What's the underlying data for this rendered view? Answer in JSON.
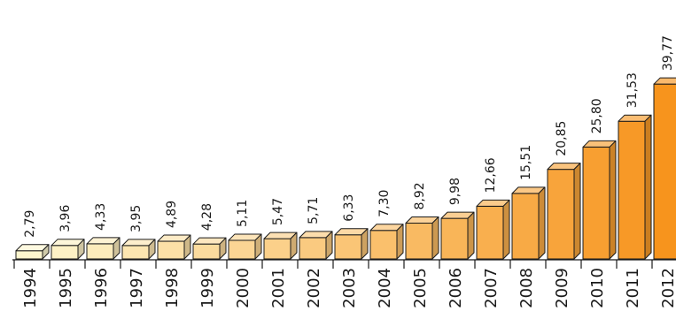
{
  "chart_data": {
    "type": "bar",
    "style": "3d-columns",
    "categories": [
      "1994",
      "1995",
      "1996",
      "1997",
      "1998",
      "1999",
      "2000",
      "2001",
      "2002",
      "2003",
      "2004",
      "2005",
      "2006",
      "2007",
      "2008",
      "2009",
      "2010",
      "2011",
      "2012"
    ],
    "values": [
      2.79,
      3.96,
      4.33,
      3.95,
      4.89,
      4.28,
      5.11,
      5.47,
      5.71,
      6.33,
      7.3,
      8.92,
      9.98,
      12.66,
      15.51,
      20.85,
      25.8,
      31.53,
      39.77
    ],
    "value_labels": [
      "2,79",
      "3,96",
      "4,33",
      "3,95",
      "4,89",
      "4,28",
      "5,11",
      "5,47",
      "5,71",
      "6,33",
      "7,30",
      "8,92",
      "9,98",
      "12,66",
      "15,51",
      "20,85",
      "25,80",
      "31,53",
      "39,77"
    ],
    "title": "",
    "xlabel": "",
    "ylabel": "",
    "grid": false,
    "legend": "none",
    "colors": {
      "start": "#fdf6cf",
      "end": "#f7941d",
      "stroke": "#1a1a1a",
      "axis": "#1a1a1a"
    }
  }
}
